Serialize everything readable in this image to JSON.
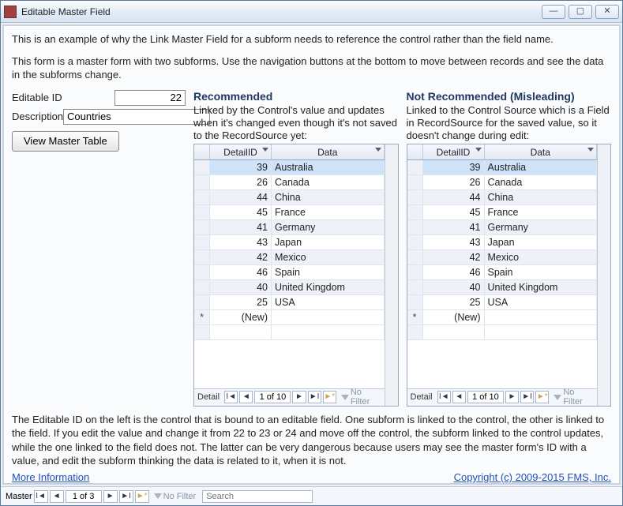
{
  "window": {
    "title": "Editable Master Field"
  },
  "intro1": "This is an example of why the Link Master Field for a subform needs to reference the control rather than the field name.",
  "intro2": "This form is a master form with two subforms. Use the navigation buttons at the bottom to move between records and see the data in the subforms change.",
  "fields": {
    "id_label": "Editable ID",
    "id_value": "22",
    "desc_label": "Description",
    "desc_value": "Countries",
    "view_btn": "View Master Table"
  },
  "sub1": {
    "heading": "Recommended",
    "desc": "Linked by the Control's value and updates when it's changed even though it's not saved to the RecordSource yet:"
  },
  "sub2": {
    "heading": "Not Recommended (Misleading)",
    "desc": "Linked to the Control Source which is a Field in RecordSource for the saved value, so it doesn't change during edit:"
  },
  "cols": {
    "detail": "DetailID",
    "data": "Data"
  },
  "rows": [
    {
      "id": "39",
      "data": "Australia"
    },
    {
      "id": "26",
      "data": "Canada"
    },
    {
      "id": "44",
      "data": "China"
    },
    {
      "id": "45",
      "data": "France"
    },
    {
      "id": "41",
      "data": "Germany"
    },
    {
      "id": "43",
      "data": "Japan"
    },
    {
      "id": "42",
      "data": "Mexico"
    },
    {
      "id": "46",
      "data": "Spain"
    },
    {
      "id": "40",
      "data": "United Kingdom"
    },
    {
      "id": "25",
      "data": "USA"
    }
  ],
  "newrow": "(New)",
  "subnav": {
    "label": "Detail",
    "pos": "1 of 10",
    "nofilter": "No Filter"
  },
  "bottom": "The Editable ID on the left is the control that is bound to an editable field. One subform is linked to the control, the other is linked to the field. If you edit the value and change it from 22 to 23 or 24 and move off the control, the subform linked to the control updates, while the one linked to the field does not.  The latter can be very dangerous because users may see the master form's ID with a value, and edit the subform thinking the data is related to it, when it is not.",
  "links": {
    "more": "More Information",
    "copyright": "Copyright (c) 2009-2015 FMS, Inc."
  },
  "formnav": {
    "label": "Master",
    "pos": "1 of 3",
    "nofilter": "No Filter",
    "search": "Search"
  },
  "colwidths": {
    "detail": 78,
    "data": 130
  }
}
